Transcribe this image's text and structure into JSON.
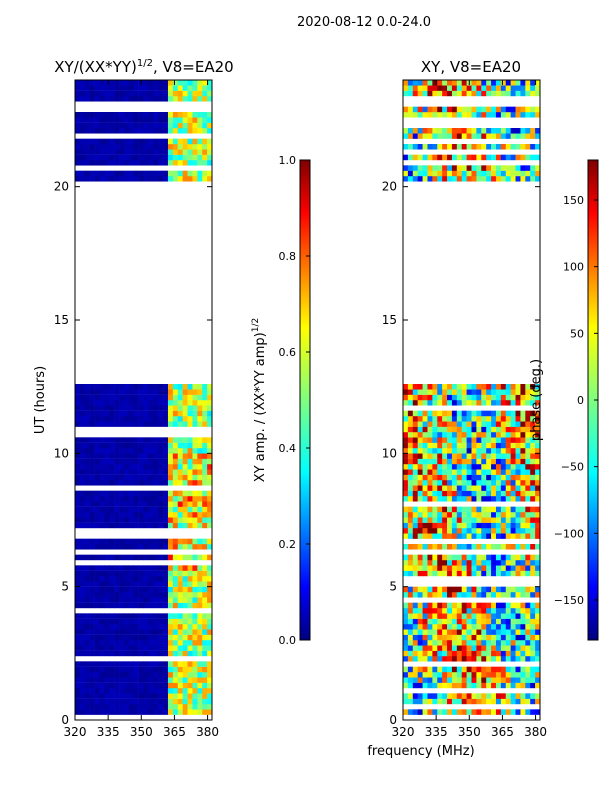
{
  "figure_title": "2020-08-12 0.0-24.0",
  "colors": {
    "jet": [
      "#00007f",
      "#0000ff",
      "#007fff",
      "#00ffff",
      "#7fff7f",
      "#ffff00",
      "#ff7f00",
      "#ff0000",
      "#7f0000"
    ],
    "background": "#ffffff"
  },
  "chart_data": [
    {
      "type": "heatmap",
      "title_main": "XY/(XX*YY)",
      "title_exp": "1/2",
      "title_tail": ", V8=EA20",
      "xlabel": "",
      "ylabel": "UT (hours)",
      "xlim": [
        320,
        382
      ],
      "ylim": [
        0,
        24
      ],
      "xticks": [
        320,
        335,
        350,
        365,
        380
      ],
      "xtick_labels": [
        "320",
        "335",
        "350",
        "365",
        "380"
      ],
      "yticks": [
        0,
        5,
        10,
        15,
        20
      ],
      "ytick_labels": [
        "0",
        "5",
        "10",
        "15",
        "20"
      ],
      "data_gap_hours": [
        12.6,
        20.4
      ],
      "active_band_mhz": [
        360,
        380
      ],
      "colorbar": {
        "label_main": "XY amp. / (XX*YY amp)",
        "label_exp": "1/2",
        "range": [
          0.0,
          1.0
        ],
        "ticks": [
          0.0,
          0.2,
          0.4,
          0.6,
          0.8,
          1.0
        ],
        "tick_labels": [
          "0.0",
          "0.2",
          "0.4",
          "0.6",
          "0.8",
          "1.0"
        ]
      }
    },
    {
      "type": "heatmap",
      "title": "XY, V8=EA20",
      "xlabel": "frequency (MHz)",
      "ylabel": "",
      "xlim": [
        320,
        382
      ],
      "ylim": [
        0,
        24
      ],
      "xticks": [
        320,
        335,
        350,
        365,
        380
      ],
      "xtick_labels": [
        "320",
        "335",
        "350",
        "365",
        "380"
      ],
      "yticks": [
        0,
        5,
        10,
        15,
        20
      ],
      "ytick_labels": [
        "0",
        "5",
        "10",
        "15",
        "20"
      ],
      "data_gap_hours": [
        12.6,
        20.4
      ],
      "colorbar": {
        "label": "phase (deg.)",
        "range": [
          -180,
          180
        ],
        "ticks": [
          -150,
          -100,
          -50,
          0,
          50,
          100,
          150
        ],
        "tick_labels": [
          "−150",
          "−100",
          "−50",
          "0",
          "50",
          "100",
          "150"
        ]
      }
    }
  ]
}
